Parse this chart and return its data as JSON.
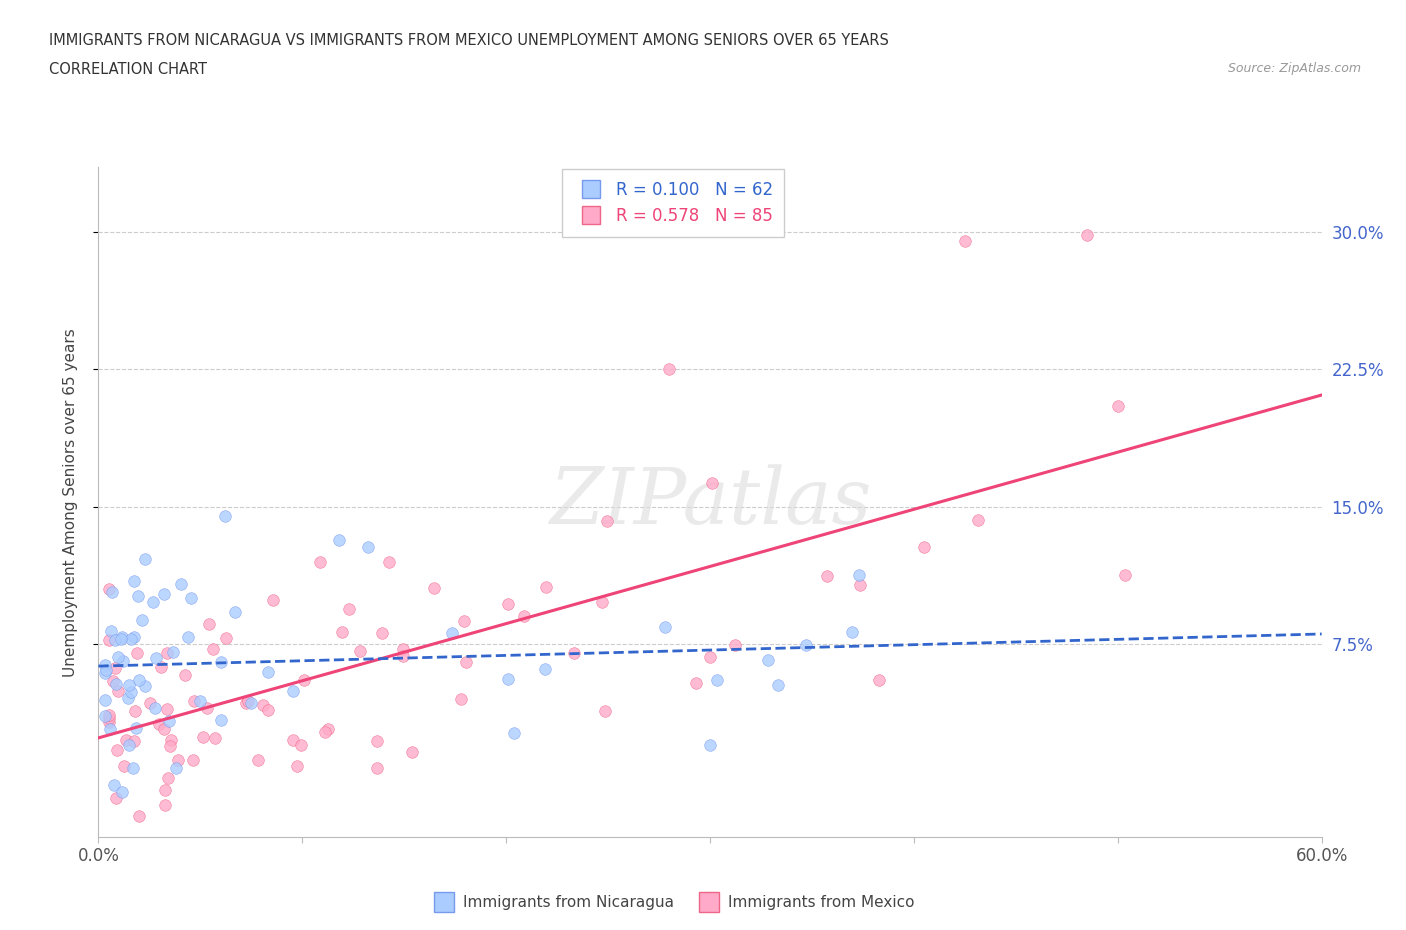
{
  "title": "IMMIGRANTS FROM NICARAGUA VS IMMIGRANTS FROM MEXICO UNEMPLOYMENT AMONG SENIORS OVER 65 YEARS",
  "subtitle": "CORRELATION CHART",
  "source": "Source: ZipAtlas.com",
  "ylabel": "Unemployment Among Seniors over 65 years",
  "xlim": [
    0.0,
    0.6
  ],
  "ylim": [
    -0.03,
    0.335
  ],
  "yticks": [
    0.075,
    0.15,
    0.225,
    0.3
  ],
  "ytick_labels": [
    "7.5%",
    "15.0%",
    "22.5%",
    "30.0%"
  ],
  "xticks": [
    0.0,
    0.1,
    0.2,
    0.3,
    0.4,
    0.5,
    0.6
  ],
  "nicaragua_color": "#aaccff",
  "mexico_color": "#ffaac8",
  "nicaragua_edge_color": "#7799ee",
  "mexico_edge_color": "#ee6688",
  "nicaragua_trend_color": "#3366cc",
  "mexico_trend_color": "#ee4477",
  "nicaragua_R": 0.1,
  "nicaragua_N": 62,
  "mexico_R": 0.578,
  "mexico_N": 85,
  "grid_color": "#cccccc",
  "tick_color": "#4466cc",
  "watermark_color": "#dddddd"
}
